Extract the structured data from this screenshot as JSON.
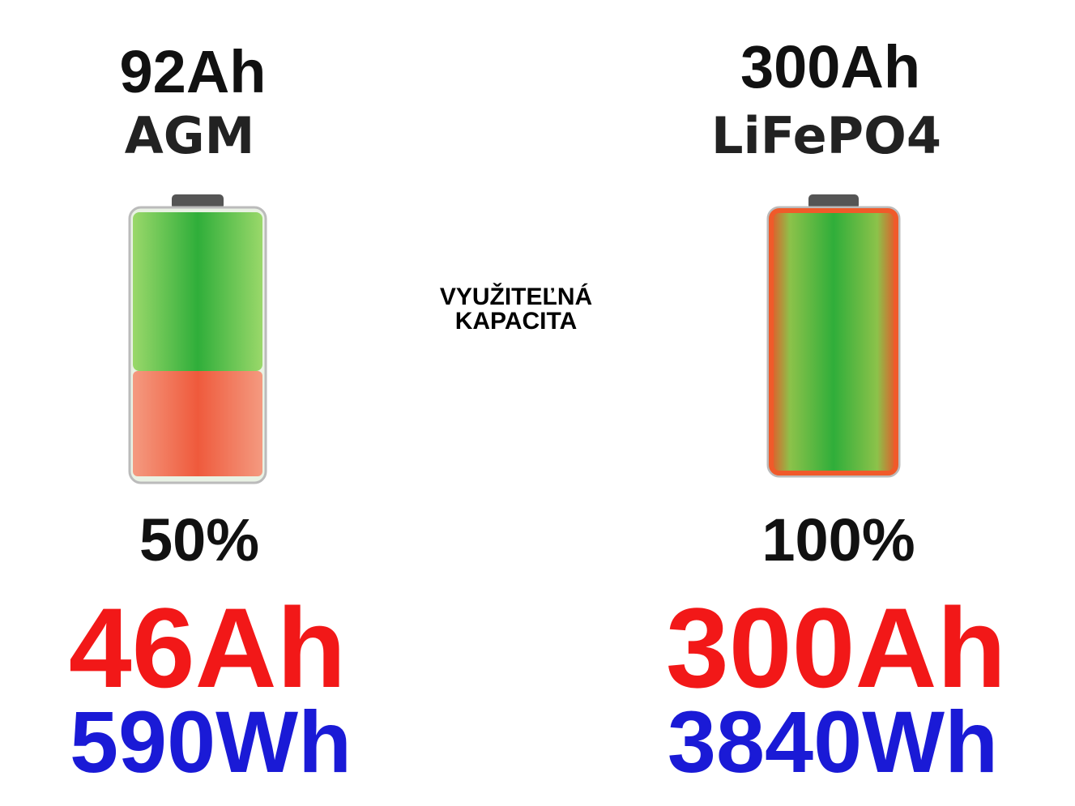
{
  "center_label": [
    "VYUŽITEĽNÁ",
    "KAPACITA"
  ],
  "batteries": [
    {
      "capacity": "92Ah",
      "chemistry": "AGM",
      "usable_percent": "50%",
      "usable_capacity": "46Ah",
      "energy": "590Wh"
    },
    {
      "capacity": "300Ah",
      "chemistry": "LiFePO4",
      "usable_percent": "100%",
      "usable_capacity": "300Ah",
      "energy": "3840Wh"
    }
  ]
}
